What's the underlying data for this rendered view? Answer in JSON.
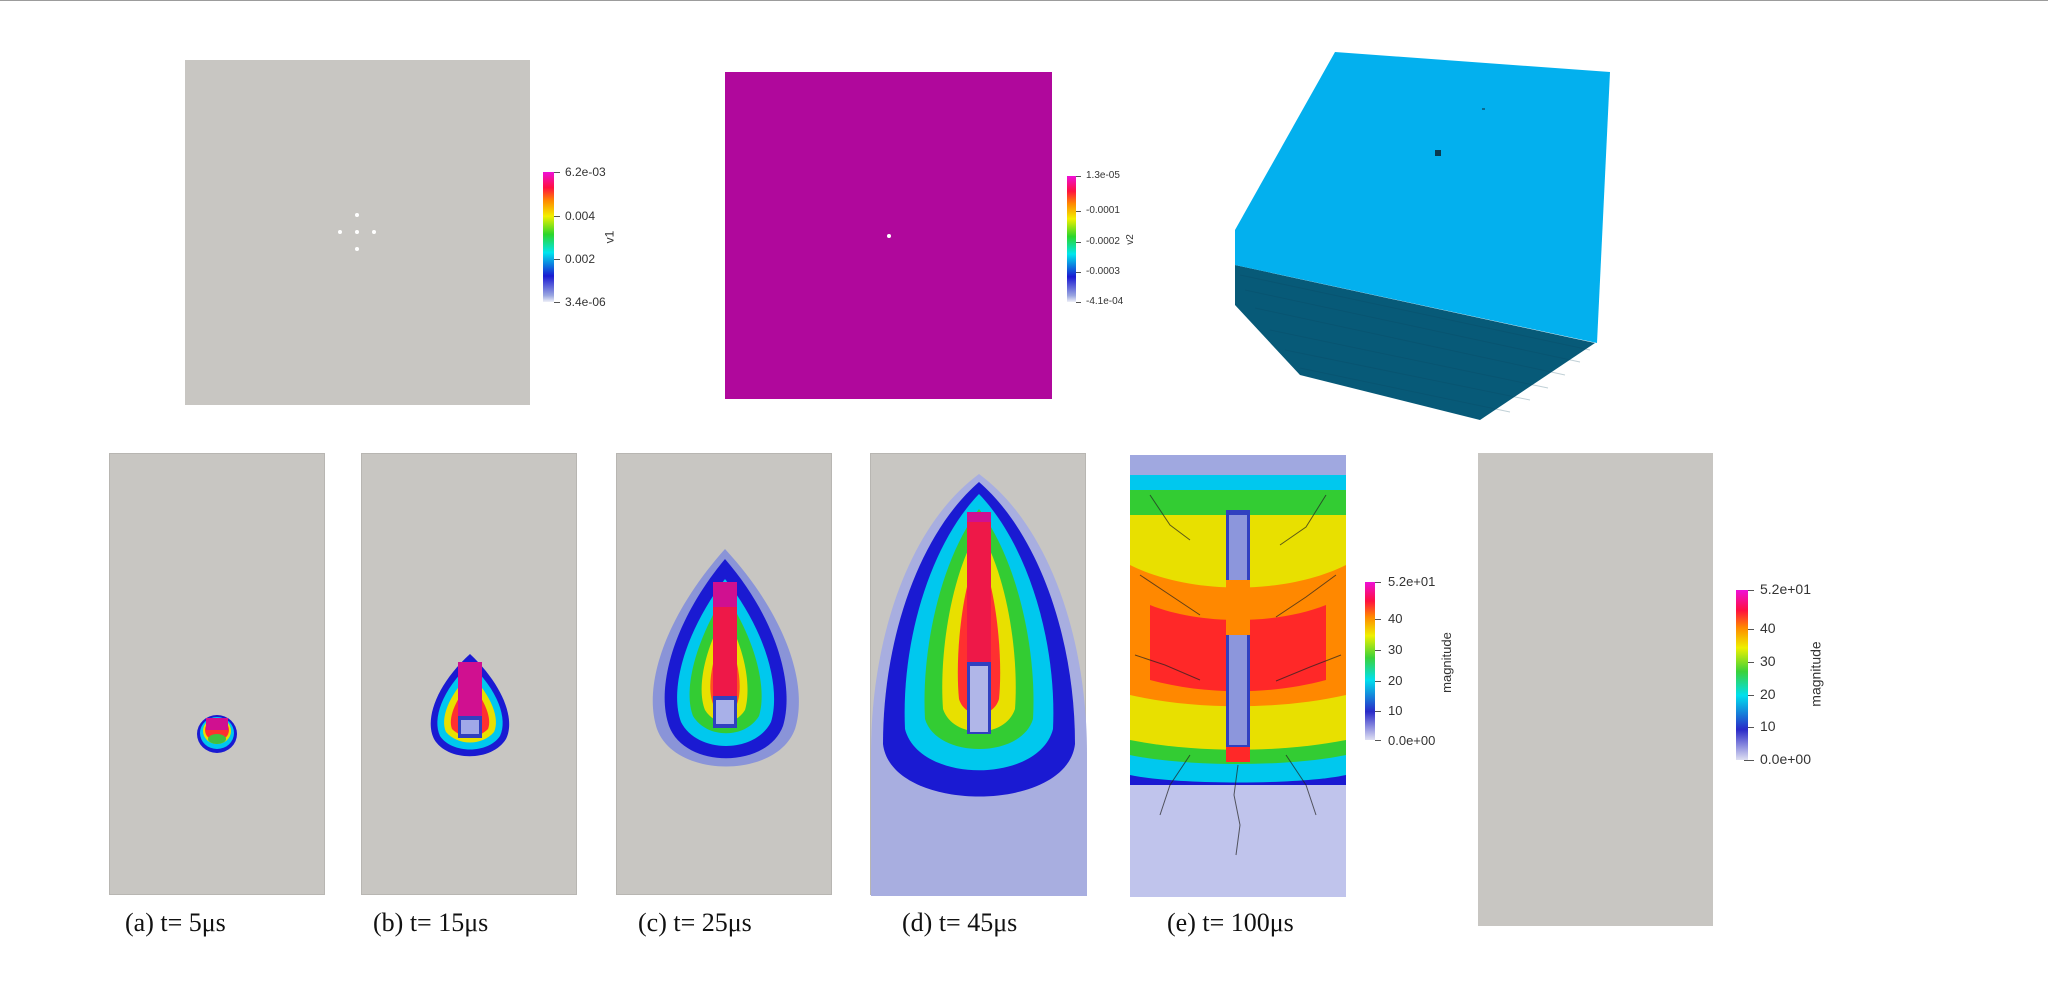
{
  "top_row": {
    "panel1_colorbar": {
      "title": "v1",
      "max": "6.2e-03",
      "t1": "0.004",
      "t2": "0.002",
      "min": "3.4e-06"
    },
    "panel2_colorbar": {
      "title": "v2",
      "max": "1.3e-05",
      "t1": "-0.0001",
      "t2": "-0.0002",
      "t3": "-0.0003",
      "min": "-4.1e-04"
    },
    "colors": {
      "background": "#c8c6c2",
      "magenta": "#b0089c",
      "cube_top": "#03b0ee",
      "cube_side": "#075a78"
    }
  },
  "bottom_row": {
    "captions": [
      "(a) t= 5μs",
      "(b) t= 15μs",
      "(c) t= 25μs",
      "(d) t= 45μs",
      "(e) t= 100μs"
    ],
    "colorbar_main": {
      "title": "magnitude",
      "max": "5.2e+01",
      "t40": "40",
      "t30": "30",
      "t20": "20",
      "t10": "10",
      "min": "0.0e+00"
    },
    "colorbar_side": {
      "title": "magnitude",
      "max": "5.2e+01",
      "t40": "40",
      "t30": "30",
      "t20": "20",
      "t10": "10",
      "min": "0.0e+00"
    }
  }
}
